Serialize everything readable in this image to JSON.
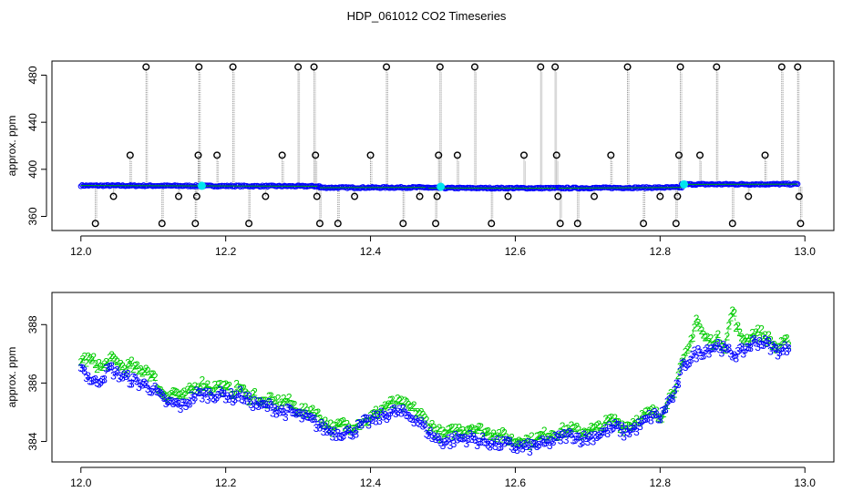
{
  "figure": {
    "title": "HDP_061012  CO2 Timeseries"
  },
  "chart_data": [
    {
      "type": "scatter",
      "ylabel": "approx. ppm",
      "xlim": [
        11.96,
        13.04
      ],
      "ylim": [
        348,
        492
      ],
      "x_ticks": [
        "12.0",
        "12.2",
        "12.4",
        "12.6",
        "12.8",
        "13.0"
      ],
      "x_tick_values": [
        12.0,
        12.2,
        12.4,
        12.6,
        12.8,
        13.0
      ],
      "y_ticks": [
        "360",
        "400",
        "440",
        "480"
      ],
      "y_tick_values": [
        360,
        400,
        440,
        480
      ],
      "series": [
        {
          "color": "#0000ff",
          "marker": "circle",
          "segments": [
            {
              "x": [
                12.0,
                12.33
              ],
              "y": [
                386.2,
                385.6
              ]
            },
            {
              "x": [
                12.33,
                12.48
              ],
              "y": [
                384.4,
                384.6
              ]
            },
            {
              "x": [
                12.48,
                12.66
              ],
              "y": [
                384.1,
                384.0
              ]
            },
            {
              "x": [
                12.66,
                12.83
              ],
              "y": [
                384.0,
                384.6
              ]
            },
            {
              "x": [
                12.83,
                12.99
              ],
              "y": [
                387.2,
                387.4
              ]
            }
          ]
        },
        {
          "color": "#000000",
          "marker": "circle",
          "outliers": [
            {
              "x": 12.02,
              "y": 354
            },
            {
              "x": 12.045,
              "y": 377
            },
            {
              "x": 12.068,
              "y": 412
            },
            {
              "x": 12.09,
              "y": 487
            },
            {
              "x": 12.112,
              "y": 354
            },
            {
              "x": 12.135,
              "y": 377
            },
            {
              "x": 12.158,
              "y": 354
            },
            {
              "x": 12.16,
              "y": 377
            },
            {
              "x": 12.162,
              "y": 412
            },
            {
              "x": 12.163,
              "y": 487
            },
            {
              "x": 12.188,
              "y": 412
            },
            {
              "x": 12.21,
              "y": 487
            },
            {
              "x": 12.232,
              "y": 354
            },
            {
              "x": 12.255,
              "y": 377
            },
            {
              "x": 12.278,
              "y": 412
            },
            {
              "x": 12.3,
              "y": 487
            },
            {
              "x": 12.322,
              "y": 487
            },
            {
              "x": 12.324,
              "y": 412
            },
            {
              "x": 12.326,
              "y": 377
            },
            {
              "x": 12.33,
              "y": 354
            },
            {
              "x": 12.355,
              "y": 354
            },
            {
              "x": 12.378,
              "y": 377
            },
            {
              "x": 12.4,
              "y": 412
            },
            {
              "x": 12.422,
              "y": 487
            },
            {
              "x": 12.445,
              "y": 354
            },
            {
              "x": 12.468,
              "y": 377
            },
            {
              "x": 12.49,
              "y": 354
            },
            {
              "x": 12.492,
              "y": 377
            },
            {
              "x": 12.494,
              "y": 412
            },
            {
              "x": 12.496,
              "y": 487
            },
            {
              "x": 12.52,
              "y": 412
            },
            {
              "x": 12.544,
              "y": 487
            },
            {
              "x": 12.567,
              "y": 354
            },
            {
              "x": 12.59,
              "y": 377
            },
            {
              "x": 12.612,
              "y": 412
            },
            {
              "x": 12.635,
              "y": 487
            },
            {
              "x": 12.655,
              "y": 487
            },
            {
              "x": 12.657,
              "y": 412
            },
            {
              "x": 12.659,
              "y": 377
            },
            {
              "x": 12.662,
              "y": 354
            },
            {
              "x": 12.686,
              "y": 354
            },
            {
              "x": 12.709,
              "y": 377
            },
            {
              "x": 12.732,
              "y": 412
            },
            {
              "x": 12.755,
              "y": 487
            },
            {
              "x": 12.777,
              "y": 354
            },
            {
              "x": 12.8,
              "y": 377
            },
            {
              "x": 12.822,
              "y": 354
            },
            {
              "x": 12.824,
              "y": 377
            },
            {
              "x": 12.826,
              "y": 412
            },
            {
              "x": 12.828,
              "y": 487
            },
            {
              "x": 12.855,
              "y": 412
            },
            {
              "x": 12.878,
              "y": 487
            },
            {
              "x": 12.9,
              "y": 354
            },
            {
              "x": 12.922,
              "y": 377
            },
            {
              "x": 12.945,
              "y": 412
            },
            {
              "x": 12.968,
              "y": 487
            },
            {
              "x": 12.99,
              "y": 487
            },
            {
              "x": 12.992,
              "y": 377
            },
            {
              "x": 12.994,
              "y": 354
            }
          ]
        },
        {
          "color": "#00e5ee",
          "marker": "filled-circle",
          "points": [
            {
              "x": 12.167,
              "y": 386.0
            },
            {
              "x": 12.497,
              "y": 385.2
            },
            {
              "x": 12.833,
              "y": 387.2
            }
          ]
        }
      ]
    },
    {
      "type": "scatter",
      "ylabel": "approx. ppm",
      "xlim": [
        11.96,
        13.04
      ],
      "ylim": [
        383.3,
        389.1
      ],
      "x_ticks": [
        "12.0",
        "12.2",
        "12.4",
        "12.6",
        "12.8",
        "13.0"
      ],
      "x_tick_values": [
        12.0,
        12.2,
        12.4,
        12.6,
        12.8,
        13.0
      ],
      "y_ticks": [
        "384",
        "386",
        "388"
      ],
      "y_tick_values": [
        384,
        386,
        388
      ],
      "series": [
        {
          "name": "2",
          "color": "#00cc00",
          "x": [
            12.0,
            12.01,
            12.02,
            12.03,
            12.04,
            12.05,
            12.06,
            12.07,
            12.08,
            12.09,
            12.1,
            12.11,
            12.12,
            12.13,
            12.14,
            12.15,
            12.16,
            12.17,
            12.18,
            12.19,
            12.2,
            12.21,
            12.22,
            12.23,
            12.24,
            12.25,
            12.26,
            12.27,
            12.28,
            12.29,
            12.3,
            12.31,
            12.32,
            12.33,
            12.34,
            12.35,
            12.36,
            12.37,
            12.38,
            12.39,
            12.4,
            12.41,
            12.42,
            12.43,
            12.44,
            12.45,
            12.46,
            12.47,
            12.48,
            12.49,
            12.5,
            12.51,
            12.52,
            12.53,
            12.54,
            12.55,
            12.56,
            12.57,
            12.58,
            12.59,
            12.6,
            12.61,
            12.62,
            12.63,
            12.64,
            12.65,
            12.66,
            12.67,
            12.68,
            12.69,
            12.7,
            12.71,
            12.72,
            12.73,
            12.74,
            12.75,
            12.76,
            12.77,
            12.78,
            12.79,
            12.8,
            12.81,
            12.82,
            12.83,
            12.84,
            12.85,
            12.86,
            12.87,
            12.88,
            12.89,
            12.9,
            12.91,
            12.92,
            12.93,
            12.94,
            12.95,
            12.96,
            12.97,
            12.98
          ],
          "y": [
            386.8,
            386.8,
            386.7,
            386.5,
            386.8,
            386.7,
            386.5,
            386.6,
            386.4,
            386.5,
            386.2,
            385.7,
            385.6,
            385.7,
            385.5,
            385.7,
            385.9,
            386.0,
            385.8,
            385.9,
            385.8,
            385.7,
            385.9,
            385.5,
            385.6,
            385.3,
            385.4,
            385.3,
            385.4,
            385.3,
            385.1,
            385.0,
            385.1,
            384.8,
            384.6,
            384.4,
            384.6,
            384.5,
            384.6,
            384.7,
            384.8,
            385.0,
            385.2,
            385.3,
            385.3,
            385.2,
            385.1,
            384.9,
            384.6,
            384.4,
            384.2,
            384.3,
            384.4,
            384.4,
            384.5,
            384.4,
            384.3,
            384.3,
            384.2,
            384.1,
            384.0,
            384.1,
            384.0,
            384.1,
            384.2,
            384.3,
            384.3,
            384.4,
            384.4,
            384.3,
            384.4,
            384.4,
            384.5,
            384.7,
            384.7,
            384.5,
            384.6,
            384.8,
            384.9,
            385.0,
            384.8,
            385.4,
            385.8,
            386.6,
            387.2,
            388.2,
            387.6,
            387.4,
            387.5,
            387.3,
            388.5,
            387.6,
            387.5,
            387.7,
            387.7,
            387.5,
            387.2,
            387.3,
            387.5
          ]
        },
        {
          "name": "3",
          "color": "#0000ff",
          "x": [
            12.0,
            12.01,
            12.02,
            12.03,
            12.04,
            12.05,
            12.06,
            12.07,
            12.08,
            12.09,
            12.1,
            12.11,
            12.12,
            12.13,
            12.14,
            12.15,
            12.16,
            12.17,
            12.18,
            12.19,
            12.2,
            12.21,
            12.22,
            12.23,
            12.24,
            12.25,
            12.26,
            12.27,
            12.28,
            12.29,
            12.3,
            12.31,
            12.32,
            12.33,
            12.34,
            12.35,
            12.36,
            12.37,
            12.38,
            12.39,
            12.4,
            12.41,
            12.42,
            12.43,
            12.44,
            12.45,
            12.46,
            12.47,
            12.48,
            12.49,
            12.5,
            12.51,
            12.52,
            12.53,
            12.54,
            12.55,
            12.56,
            12.57,
            12.58,
            12.59,
            12.6,
            12.61,
            12.62,
            12.63,
            12.64,
            12.65,
            12.66,
            12.67,
            12.68,
            12.69,
            12.7,
            12.71,
            12.72,
            12.73,
            12.74,
            12.75,
            12.76,
            12.77,
            12.78,
            12.79,
            12.8,
            12.81,
            12.82,
            12.83,
            12.84,
            12.85,
            12.86,
            12.87,
            12.88,
            12.89,
            12.9,
            12.91,
            12.92,
            12.93,
            12.94,
            12.95,
            12.96,
            12.97,
            12.98
          ],
          "y": [
            386.6,
            386.2,
            386.0,
            386.2,
            386.5,
            386.3,
            386.2,
            386.1,
            386.0,
            385.9,
            385.8,
            385.5,
            385.3,
            385.3,
            385.2,
            385.4,
            385.6,
            385.6,
            385.6,
            385.6,
            385.6,
            385.5,
            385.6,
            385.4,
            385.3,
            385.2,
            385.2,
            385.1,
            385.0,
            385.0,
            384.9,
            384.8,
            384.7,
            384.5,
            384.4,
            384.3,
            384.3,
            384.3,
            384.4,
            384.6,
            384.7,
            384.8,
            384.9,
            385.0,
            385.0,
            384.9,
            384.8,
            384.6,
            384.3,
            384.1,
            384.0,
            384.0,
            384.1,
            384.1,
            384.1,
            384.0,
            384.0,
            383.9,
            383.9,
            383.9,
            383.8,
            383.8,
            383.8,
            383.9,
            383.9,
            384.0,
            384.1,
            384.2,
            384.2,
            384.1,
            384.1,
            384.2,
            384.3,
            384.4,
            384.5,
            384.3,
            384.4,
            384.5,
            384.7,
            384.9,
            384.8,
            385.3,
            385.6,
            386.5,
            386.8,
            387.0,
            387.1,
            387.2,
            387.3,
            387.1,
            387.0,
            387.0,
            387.2,
            387.4,
            387.4,
            387.3,
            387.1,
            387.1,
            387.3
          ]
        }
      ]
    }
  ]
}
